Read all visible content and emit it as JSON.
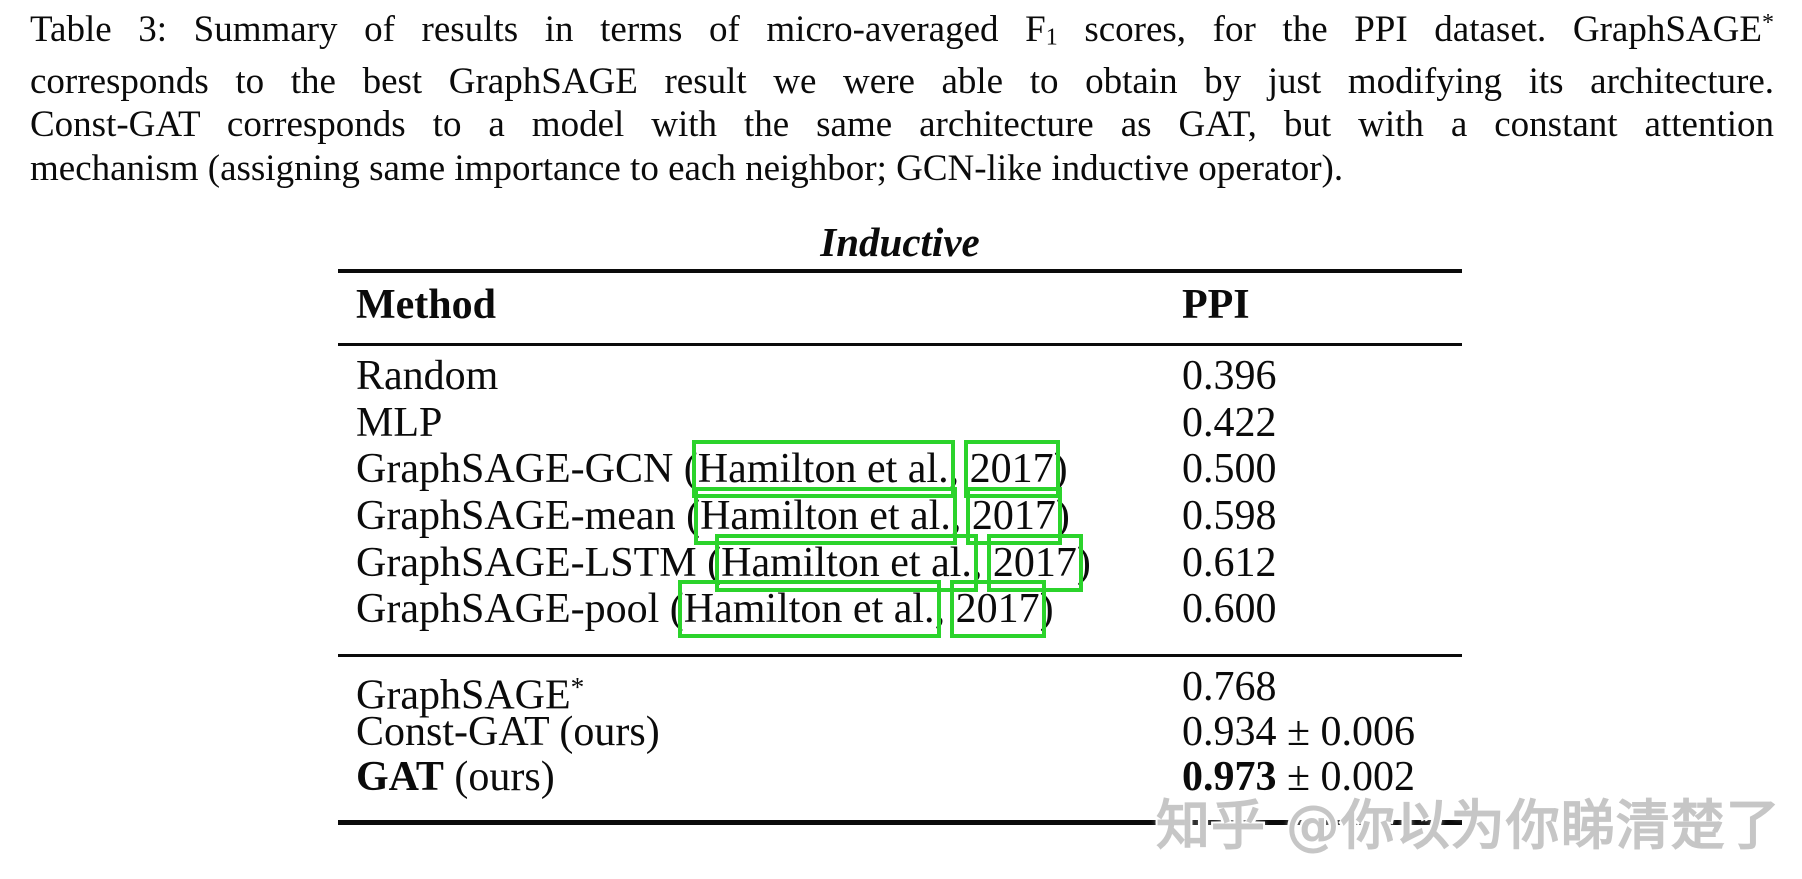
{
  "caption": {
    "full_text": "Table 3: Summary of results in terms of micro-averaged F1 scores, for the PPI dataset. GraphSAGE* corresponds to the best GraphSAGE result we were able to obtain by just modifying its architecture. Const-GAT corresponds to a model with the same architecture as GAT, but with a constant attention mechanism (assigning same importance to each neighbor; GCN-like inductive operator).",
    "lines": [
      "Table 3: Summary of results in terms of micro-averaged F<sub>1</sub> scores, for the PPI dataset. GraphSAGE<sup>*</sup>",
      "corresponds to the best GraphSAGE result we were able to obtain by just modifying its architecture.",
      "Const-GAT corresponds to a model with the same architecture as GAT, but with a constant attention",
      "mechanism (assigning same importance to each neighbor; GCN-like inductive operator)."
    ]
  },
  "table": {
    "group_title": "Inductive",
    "columns": {
      "method": "Method",
      "ppi": "PPI"
    },
    "rows": [
      {
        "method": "Random",
        "ppi": "0.396"
      },
      {
        "method": "MLP",
        "ppi": "0.422"
      },
      {
        "method": "GraphSAGE-GCN (Hamilton et al., 2017)",
        "ppi": "0.500",
        "prefix": "GraphSAGE-GCN (",
        "cite_name": "Hamilton et al.",
        "cite_sep": ", ",
        "cite_year": "2017",
        "suffix": ")"
      },
      {
        "method": "GraphSAGE-mean (Hamilton et al., 2017)",
        "ppi": "0.598",
        "prefix": "GraphSAGE-mean (",
        "cite_name": "Hamilton et al.",
        "cite_sep": ", ",
        "cite_year": "2017",
        "suffix": ")"
      },
      {
        "method": "GraphSAGE-LSTM (Hamilton et al., 2017)",
        "ppi": "0.612",
        "prefix": "GraphSAGE-LSTM (",
        "cite_name": "Hamilton et al.",
        "cite_sep": ", ",
        "cite_year": "2017",
        "suffix": ")"
      },
      {
        "method": "GraphSAGE-pool (Hamilton et al., 2017)",
        "ppi": "0.600",
        "prefix": "GraphSAGE-pool (",
        "cite_name": "Hamilton et al.",
        "cite_sep": ", ",
        "cite_year": "2017",
        "suffix": ")"
      },
      {
        "method": "GraphSAGE*",
        "ppi": "0.768",
        "method_base": "GraphSAGE",
        "method_sup": "*"
      },
      {
        "method": "Const-GAT (ours)",
        "ppi": "0.934 ± 0.006"
      },
      {
        "method": "GAT (ours)",
        "ppi": "0.973 ± 0.002",
        "method_bold": "GAT",
        "method_rest": " (ours)",
        "value_bold": "0.973",
        "value_rest": " ± 0.002"
      }
    ]
  },
  "annotations": {
    "box_color": "#2bd32b",
    "boxed_terms": [
      "Hamilton et al.",
      "2017"
    ]
  },
  "watermark": {
    "text": "知乎 @你以为你睇清楚了"
  }
}
